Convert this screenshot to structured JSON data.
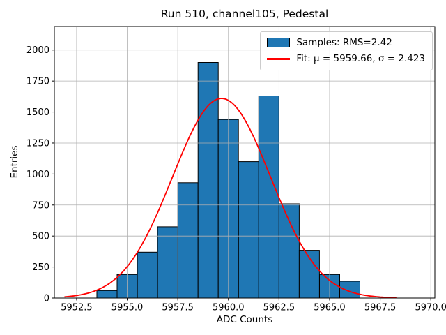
{
  "chart_data": {
    "type": "bar",
    "title": "Run 510, channel105, Pedestal",
    "xlabel": "ADC Counts",
    "ylabel": "Entries",
    "xlim": [
      5951.4,
      5970.2
    ],
    "ylim": [
      0,
      2190
    ],
    "grid": true,
    "grid_color": "#b0b0b0",
    "x_ticks": [
      5952.5,
      5955.0,
      5957.5,
      5960.0,
      5962.5,
      5965.0,
      5967.5,
      5970.0
    ],
    "x_tick_labels": [
      "5952.5",
      "5955.0",
      "5957.5",
      "5960.0",
      "5962.5",
      "5965.0",
      "5967.5",
      "5970.0"
    ],
    "y_ticks": [
      0,
      250,
      500,
      750,
      1000,
      1250,
      1500,
      1750,
      2000
    ],
    "bin_edges": [
      5953.5,
      5954.5,
      5955.5,
      5956.5,
      5957.5,
      5958.5,
      5959.5,
      5960.5,
      5961.5,
      5962.5,
      5963.5,
      5964.5,
      5965.5,
      5966.5
    ],
    "counts": [
      60,
      190,
      370,
      575,
      930,
      1900,
      1440,
      1100,
      1630,
      760,
      385,
      190,
      135
    ],
    "bar_color": "#1f77b4",
    "bar_edge_color": "#000000",
    "fit": {
      "mu": 5959.66,
      "sigma": 2.423,
      "amplitude": 1610,
      "color": "#ff0000",
      "x_range": [
        5951.9,
        5968.3
      ]
    },
    "legend": {
      "position": "upper right",
      "entries": [
        {
          "type": "patch",
          "label": "Samples: RMS=2.42",
          "color": "#1f77b4"
        },
        {
          "type": "line",
          "label": "Fit: μ = 5959.66, σ = 2.423",
          "color": "#ff0000"
        }
      ]
    }
  }
}
